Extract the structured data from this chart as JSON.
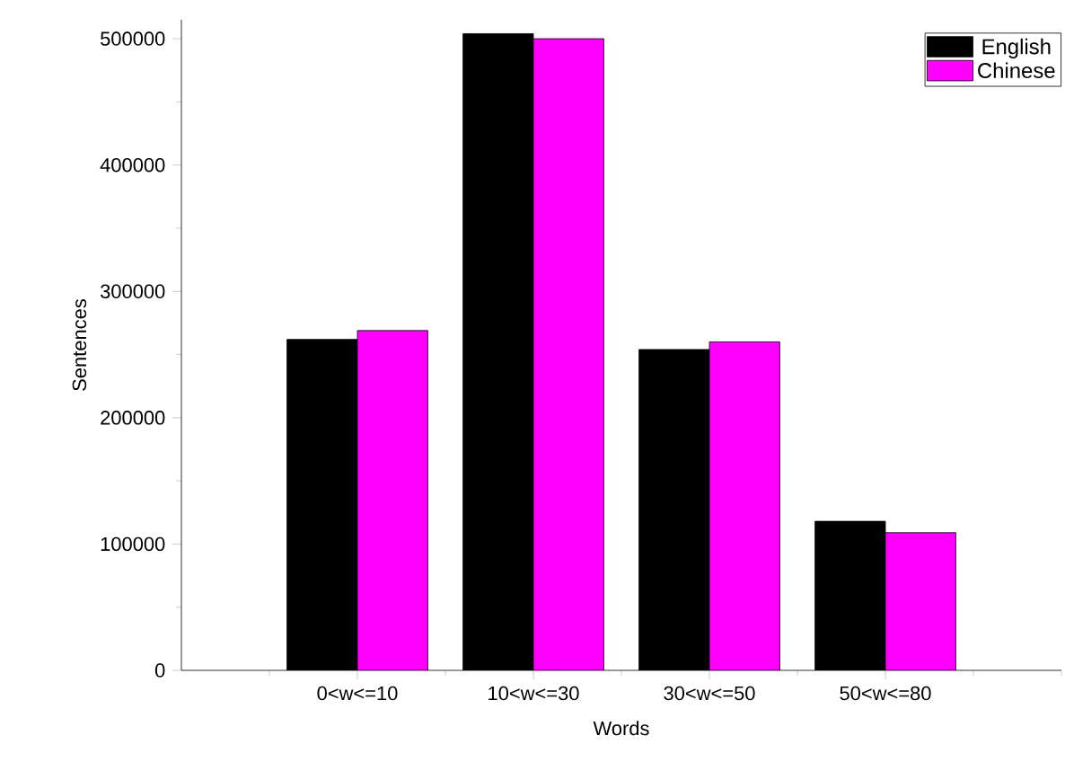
{
  "chart_data": {
    "type": "bar",
    "xlabel": "Words",
    "ylabel": "Sentences",
    "categories": [
      "0<w<=10",
      "10<w<=30",
      "30<w<=50",
      "50<w<=80"
    ],
    "series": [
      {
        "name": "English",
        "color": "#000000",
        "values": [
          262000,
          504000,
          254000,
          118000
        ]
      },
      {
        "name": "Chinese",
        "color": "#ff00ff",
        "values": [
          269000,
          500000,
          260000,
          109000
        ]
      }
    ],
    "ylim": [
      0,
      515000
    ],
    "yticks": [
      0,
      100000,
      200000,
      300000,
      400000,
      500000
    ],
    "legend": "top right",
    "grid": false
  }
}
